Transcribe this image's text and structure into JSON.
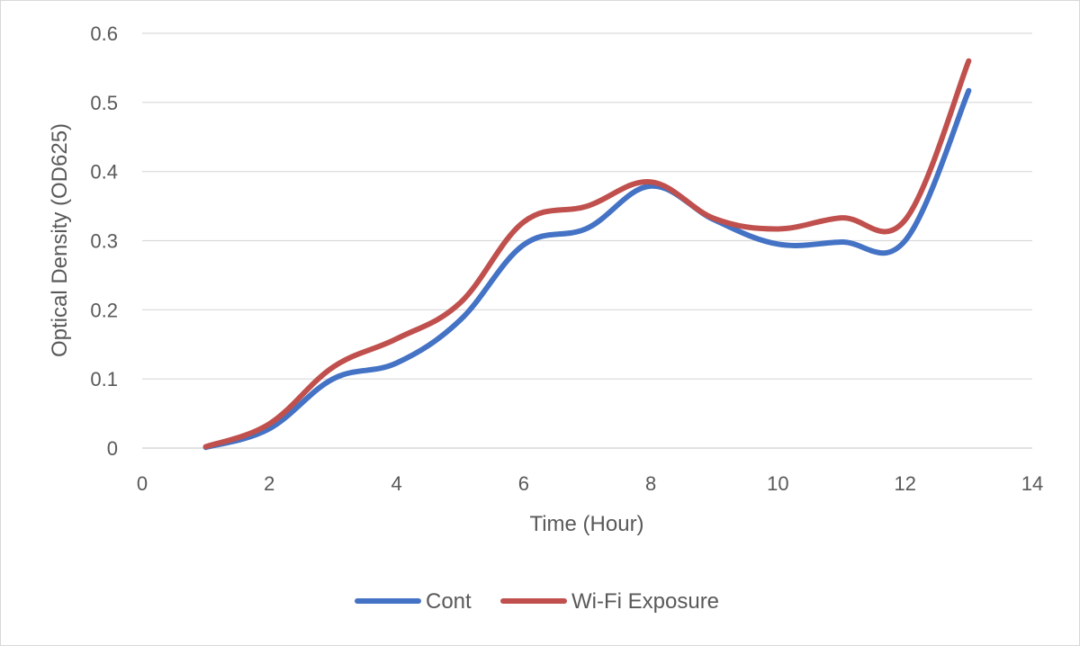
{
  "chart_data": {
    "type": "line",
    "title": "",
    "xlabel": "Time (Hour)",
    "ylabel": "Optical Density (OD625)",
    "xlim": [
      0,
      14
    ],
    "ylim": [
      0,
      0.6
    ],
    "x_ticks": [
      "0",
      "2",
      "4",
      "6",
      "8",
      "10",
      "12",
      "14"
    ],
    "y_ticks": [
      "0",
      "0.1",
      "0.2",
      "0.3",
      "0.4",
      "0.5",
      "0.6"
    ],
    "grid": "horizontal",
    "legend_position": "bottom",
    "smooth": true,
    "series": [
      {
        "name": "Cont",
        "color": "#4472c4",
        "x": [
          1,
          2,
          3,
          4,
          5,
          6,
          7,
          8,
          9,
          10,
          11,
          12,
          13
        ],
        "y": [
          0.001,
          0.028,
          0.1,
          0.123,
          0.185,
          0.294,
          0.318,
          0.379,
          0.33,
          0.295,
          0.298,
          0.3,
          0.517
        ]
      },
      {
        "name": "Wi-Fi Exposure",
        "color": "#c0504d",
        "x": [
          1,
          2,
          3,
          4,
          5,
          6,
          7,
          8,
          9,
          10,
          11,
          12,
          13
        ],
        "y": [
          0.002,
          0.035,
          0.117,
          0.158,
          0.21,
          0.327,
          0.35,
          0.385,
          0.332,
          0.317,
          0.333,
          0.33,
          0.56
        ]
      }
    ]
  }
}
